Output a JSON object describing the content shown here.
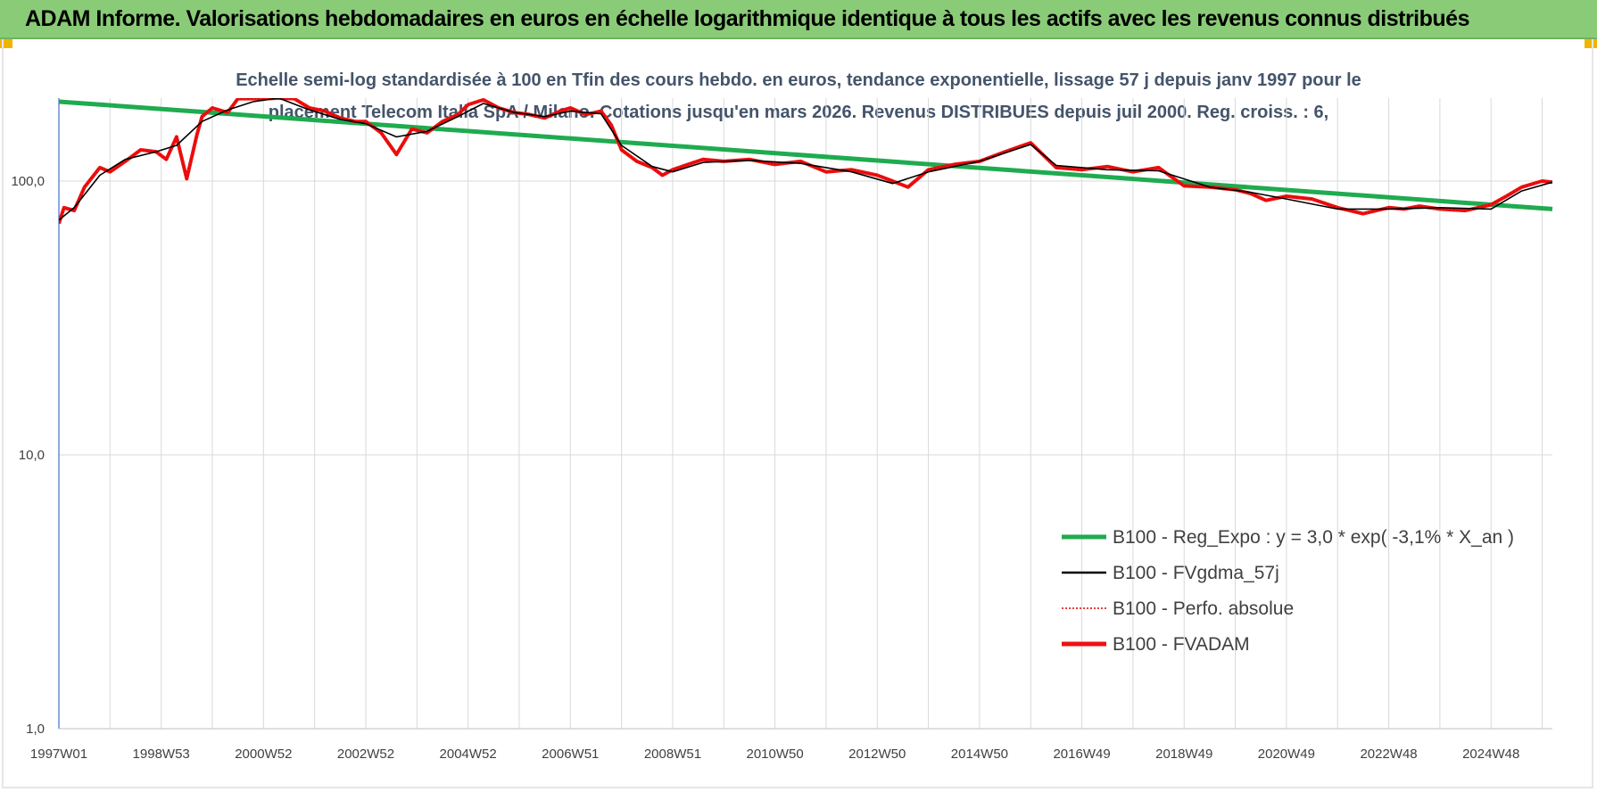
{
  "header": {
    "title": "ADAM Informe. Valorisations hebdomadaires en euros en échelle logarithmique identique à tous les actifs avec les revenus connus distribués"
  },
  "colors": {
    "header_bg": "#8acb77",
    "trend": "#1fab4f",
    "smooth": "#000000",
    "perf": "#e00000",
    "fvadam": "#ee1111",
    "grid": "#d9d9d9"
  },
  "chart_data": {
    "type": "line",
    "title_lines": [
      "Echelle semi-log standardisée à 100 en Tfin des cours hebdo. en euros, tendance exponentielle, lissage 57 j depuis janv 1997 pour le",
      "placement Telecom Italia SpA / Milano. Cotations jusqu'en mars 2026. Revenus DISTRIBUES depuis juil 2000. Reg. croiss. : 6,"
    ],
    "y_scale": "log",
    "ylim": [
      1,
      200
    ],
    "y_ticks": [
      "1,0",
      "10,0",
      "100,0"
    ],
    "xlim": [
      1997.0,
      2026.2
    ],
    "x_ticks": [
      {
        "label": "1997W01",
        "x": 1997.0
      },
      {
        "label": "1998W53",
        "x": 1999.0
      },
      {
        "label": "2000W52",
        "x": 2001.0
      },
      {
        "label": "2002W52",
        "x": 2003.0
      },
      {
        "label": "2004W52",
        "x": 2005.0
      },
      {
        "label": "2006W51",
        "x": 2007.0
      },
      {
        "label": "2008W51",
        "x": 2009.0
      },
      {
        "label": "2010W50",
        "x": 2011.0
      },
      {
        "label": "2012W50",
        "x": 2013.0
      },
      {
        "label": "2014W50",
        "x": 2015.0
      },
      {
        "label": "2016W49",
        "x": 2017.0
      },
      {
        "label": "2018W49",
        "x": 2019.0
      },
      {
        "label": "2020W49",
        "x": 2021.0
      },
      {
        "label": "2022W48",
        "x": 2023.0
      },
      {
        "label": "2024W48",
        "x": 2025.0
      }
    ],
    "legend": {
      "placement": "bottom-right",
      "entries": [
        {
          "label": "B100 - Reg_Expo : y = 3,0 * exp( -3,1% *  X_an )",
          "series": "trend"
        },
        {
          "label": "B100 - FVgdma_57j",
          "series": "smooth"
        },
        {
          "label": "B100 - Perfo. absolue",
          "series": "perf"
        },
        {
          "label": "B100 - FVADAM",
          "series": "fvadam"
        }
      ]
    },
    "series": {
      "trend": {
        "x": [
          1997.0,
          2026.2
        ],
        "y": [
          195,
          79
        ]
      },
      "fvadam": {
        "x": [
          1997.0,
          1997.1,
          1997.3,
          1997.5,
          1997.8,
          1998.0,
          1998.3,
          1998.6,
          1998.9,
          1999.1,
          1999.3,
          1999.5,
          1999.7,
          1999.8,
          2000.0,
          2000.3,
          2000.5,
          2000.8,
          2001.0,
          2001.3,
          2001.6,
          2001.9,
          2002.2,
          2002.5,
          2002.8,
          2003.0,
          2003.3,
          2003.6,
          2003.9,
          2004.2,
          2004.5,
          2004.8,
          2005.0,
          2005.3,
          2005.6,
          2005.9,
          2006.2,
          2006.5,
          2006.8,
          2007.0,
          2007.3,
          2007.6,
          2007.8,
          2008.0,
          2008.3,
          2008.6,
          2008.8,
          2009.0,
          2009.3,
          2009.6,
          2010.0,
          2010.5,
          2011.0,
          2011.5,
          2012.0,
          2012.5,
          2013.0,
          2013.3,
          2013.6,
          2014.0,
          2014.5,
          2015.0,
          2015.5,
          2016.0,
          2016.5,
          2017.0,
          2017.5,
          2018.0,
          2018.5,
          2019.0,
          2019.5,
          2020.0,
          2020.3,
          2020.6,
          2021.0,
          2021.5,
          2022.0,
          2022.5,
          2023.0,
          2023.3,
          2023.6,
          2024.0,
          2024.5,
          2025.0,
          2025.3,
          2025.6,
          2026.0,
          2026.2
        ],
        "y": [
          70,
          80,
          78,
          95,
          112,
          108,
          118,
          130,
          128,
          120,
          145,
          102,
          148,
          172,
          185,
          178,
          200,
          200,
          200,
          220,
          200,
          185,
          180,
          170,
          165,
          165,
          150,
          125,
          155,
          150,
          165,
          175,
          190,
          198,
          185,
          178,
          175,
          170,
          180,
          185,
          175,
          180,
          160,
          130,
          118,
          112,
          105,
          110,
          115,
          120,
          118,
          120,
          115,
          118,
          108,
          110,
          105,
          100,
          95,
          110,
          115,
          118,
          128,
          138,
          112,
          110,
          113,
          108,
          112,
          96,
          95,
          93,
          90,
          85,
          88,
          86,
          80,
          76,
          80,
          79,
          81,
          79,
          78,
          82,
          88,
          95,
          100,
          99
        ]
      },
      "smooth": {
        "x": [
          1997.0,
          1997.3,
          1997.8,
          1998.3,
          1998.9,
          1999.3,
          1999.8,
          2000.3,
          2000.8,
          2001.3,
          2001.9,
          2002.5,
          2003.0,
          2003.6,
          2004.2,
          2004.8,
          2005.3,
          2005.9,
          2006.5,
          2007.0,
          2007.6,
          2008.0,
          2008.6,
          2009.0,
          2009.6,
          2010.5,
          2011.5,
          2012.5,
          2013.3,
          2014.0,
          2015.0,
          2016.0,
          2016.5,
          2017.5,
          2018.5,
          2019.5,
          2020.3,
          2021.0,
          2022.0,
          2023.0,
          2024.0,
          2025.0,
          2025.6,
          2026.2
        ],
        "y": [
          72,
          80,
          105,
          120,
          128,
          135,
          165,
          182,
          195,
          205,
          182,
          168,
          162,
          145,
          152,
          172,
          192,
          178,
          172,
          180,
          176,
          135,
          113,
          108,
          117,
          119,
          116,
          108,
          98,
          108,
          118,
          136,
          114,
          110,
          109,
          95,
          91,
          86,
          79,
          79,
          80,
          79,
          92,
          99
        ]
      }
    }
  }
}
